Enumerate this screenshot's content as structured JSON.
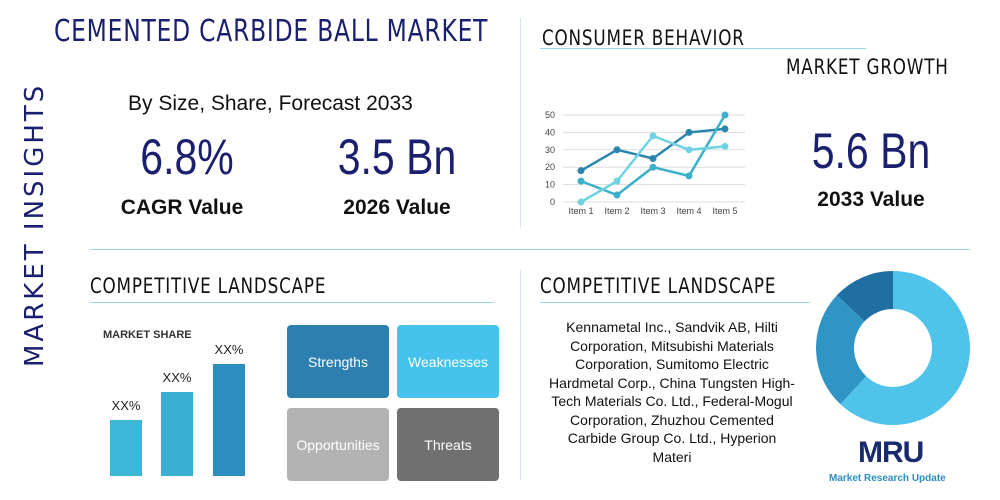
{
  "header": {
    "title": "CEMENTED CARBIDE BALL MARKET",
    "side_label": "MARKET INSIGHTS",
    "subtitle": "By Size, Share, Forecast 2033"
  },
  "stats": [
    {
      "value": "6.8%",
      "label": "CAGR Value"
    },
    {
      "value": "3.5 Bn",
      "label": "2026 Value"
    },
    {
      "value": "5.6 Bn",
      "label": "2033 Value"
    }
  ],
  "sections": {
    "consumer": "CONSUMER BEHAVIOR",
    "growth": "MARKET GROWTH",
    "competitive_left": "COMPETITIVE LANDSCAPE",
    "competitive_right": "COMPETITIVE LANDSCAPE"
  },
  "swot": [
    "Strengths",
    "Weaknesses",
    "Opportunities",
    "Threats"
  ],
  "companies": "Kennametal Inc., Sandvik AB, Hilti Corporation, Mitsubishi Materials Corporation, Sumitomo Electric Hardmetal Corp., China Tungsten High-Tech Materials Co. Ltd., Federal-Mogul Corporation, Zhuzhou Cemented Carbide Group Co. Ltd., Hyperion Materi",
  "logo": {
    "mark": "MRU",
    "text": "Market Research Update"
  },
  "chart_data": [
    {
      "type": "line",
      "categories": [
        "Item 1",
        "Item 2",
        "Item 3",
        "Item 4",
        "Item 5"
      ],
      "series": [
        {
          "color": "#2a86ad",
          "values": [
            18,
            30,
            25,
            40,
            42
          ]
        },
        {
          "color": "#3bb0cc",
          "values": [
            12,
            4,
            20,
            15,
            50
          ]
        },
        {
          "color": "#6fd3e3",
          "values": [
            0,
            12,
            38,
            30,
            32
          ]
        }
      ],
      "ylim": [
        0,
        50
      ],
      "yticks": [
        0,
        10,
        20,
        30,
        40,
        50
      ],
      "grid": true
    },
    {
      "type": "bar",
      "title": "MARKET SHARE",
      "categories": [
        null,
        null,
        null
      ],
      "values": [
        50,
        75,
        100
      ],
      "value_labels": [
        "XX%",
        "XX%",
        "XX%"
      ],
      "colors": [
        "#3eb8da",
        "#3aaed3",
        "#2d8ec0"
      ],
      "ylim": [
        0,
        100
      ]
    },
    {
      "type": "donut",
      "values": [
        62,
        25,
        13
      ],
      "colors": [
        "#4fc3ea",
        "#2e95c6",
        "#1f6fa2"
      ]
    }
  ]
}
